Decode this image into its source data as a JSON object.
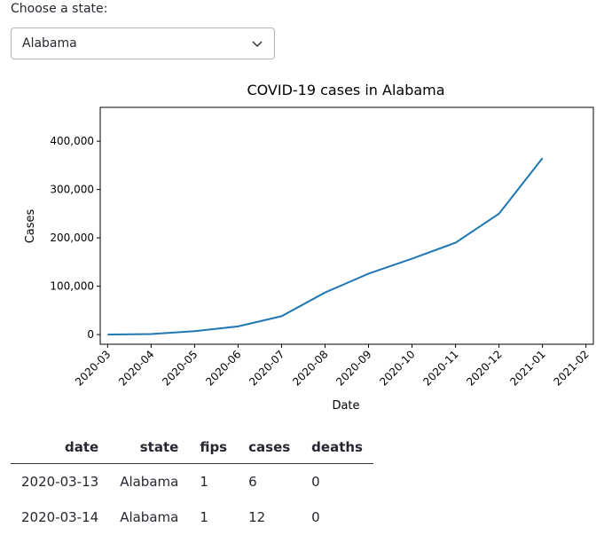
{
  "select": {
    "label": "Choose a state:",
    "value": "Alabama"
  },
  "chart_data": {
    "type": "line",
    "title": "COVID-19 cases in Alabama",
    "x_label": "Date",
    "y_label": "Cases",
    "x": [
      "2020-03",
      "2020-04",
      "2020-05",
      "2020-06",
      "2020-07",
      "2020-08",
      "2020-09",
      "2020-10",
      "2020-11",
      "2020-12",
      "2021-01"
    ],
    "values": [
      0,
      1000,
      7000,
      17000,
      38000,
      87000,
      126000,
      157000,
      190000,
      250000,
      365000
    ],
    "color": "#1f77b4",
    "xticks": [
      "2020-03",
      "2020-04",
      "2020-05",
      "2020-06",
      "2020-07",
      "2020-08",
      "2020-09",
      "2020-10",
      "2020-11",
      "2020-12",
      "2021-01",
      "2021-02"
    ],
    "ylim": [
      -20000,
      470000
    ],
    "yticks": [
      0,
      {
        "value": 100000,
        "label": "100,000"
      },
      {
        "value": 200000,
        "label": "200,000"
      },
      {
        "value": 300000,
        "label": "300,000"
      },
      {
        "value": 400000,
        "label": "400,000"
      }
    ]
  },
  "table": {
    "columns": [
      "date",
      "state",
      "fips",
      "cases",
      "deaths"
    ],
    "rows": [
      [
        "2020-03-13",
        "Alabama",
        1,
        6,
        0
      ],
      [
        "2020-03-14",
        "Alabama",
        1,
        12,
        0
      ]
    ]
  }
}
